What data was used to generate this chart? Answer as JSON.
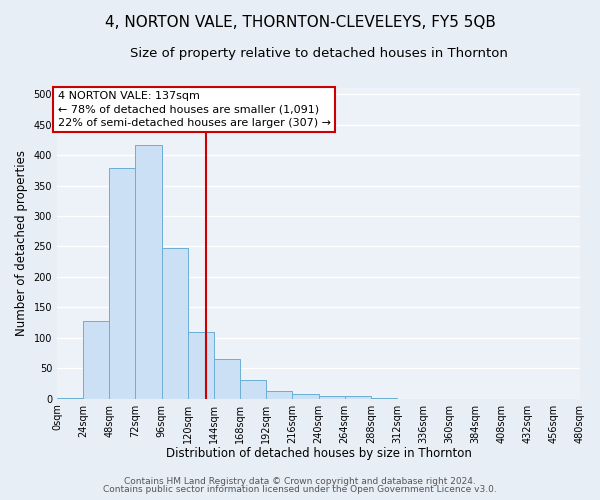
{
  "title": "4, NORTON VALE, THORNTON-CLEVELEYS, FY5 5QB",
  "subtitle": "Size of property relative to detached houses in Thornton",
  "xlabel": "Distribution of detached houses by size in Thornton",
  "ylabel": "Number of detached properties",
  "bin_edges": [
    0,
    24,
    48,
    72,
    96,
    120,
    144,
    168,
    192,
    216,
    240,
    264,
    288,
    312,
    336,
    360,
    384,
    408,
    432,
    456,
    480
  ],
  "bar_heights": [
    2,
    128,
    378,
    417,
    247,
    110,
    65,
    30,
    13,
    7,
    5,
    5,
    2,
    0,
    0,
    0,
    0,
    0,
    0,
    0
  ],
  "bar_facecolor": "#cce0f5",
  "bar_edgecolor": "#6baed6",
  "vline_x": 137,
  "vline_color": "#cc0000",
  "annotation_line1": "4 NORTON VALE: 137sqm",
  "annotation_line2": "← 78% of detached houses are smaller (1,091)",
  "annotation_line3": "22% of semi-detached houses are larger (307) →",
  "annotation_box_facecolor": "#ffffff",
  "annotation_box_edgecolor": "#cc0000",
  "ylim": [
    0,
    510
  ],
  "xlim": [
    0,
    480
  ],
  "yticks": [
    0,
    50,
    100,
    150,
    200,
    250,
    300,
    350,
    400,
    450,
    500
  ],
  "xtick_labels": [
    "0sqm",
    "24sqm",
    "48sqm",
    "72sqm",
    "96sqm",
    "120sqm",
    "144sqm",
    "168sqm",
    "192sqm",
    "216sqm",
    "240sqm",
    "264sqm",
    "288sqm",
    "312sqm",
    "336sqm",
    "360sqm",
    "384sqm",
    "408sqm",
    "432sqm",
    "456sqm",
    "480sqm"
  ],
  "footer_line1": "Contains HM Land Registry data © Crown copyright and database right 2024.",
  "footer_line2": "Contains public sector information licensed under the Open Government Licence v3.0.",
  "bg_color": "#e8eef5",
  "plot_bg_color": "#edf2f8",
  "grid_color": "#ffffff",
  "title_fontsize": 11,
  "subtitle_fontsize": 9.5,
  "axis_label_fontsize": 8.5,
  "tick_fontsize": 7,
  "footer_fontsize": 6.5,
  "annot_fontsize": 8
}
